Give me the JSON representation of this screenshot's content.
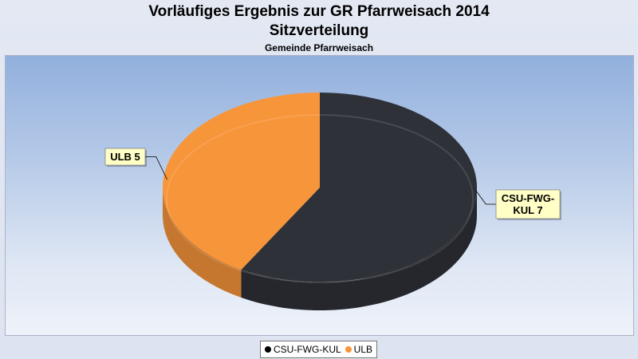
{
  "chart": {
    "title_line1": "Vorläufiges Ergebnis zur GR Pfarrweisach 2014",
    "title_line2": "Sitzverteilung",
    "subtitle": "Gemeinde Pfarrweisach"
  },
  "chart_data": {
    "type": "pie",
    "title": "Vorläufiges Ergebnis zur GR Pfarrweisach 2014 Sitzverteilung",
    "subtitle": "Gemeinde Pfarrweisach",
    "three_d": true,
    "legend_position": "bottom-center",
    "slices": [
      {
        "label": "CSU-FWG-KUL",
        "value": 7,
        "data_label": "CSU-FWG-KUL 7",
        "color": "#2e3138"
      },
      {
        "label": "ULB",
        "value": 5,
        "data_label": "ULB 5",
        "color": "#f7953b"
      }
    ]
  },
  "legend": {
    "items": [
      {
        "label": "CSU-FWG-KUL",
        "color": "#000000"
      },
      {
        "label": "ULB",
        "color": "#f7953b"
      }
    ]
  }
}
